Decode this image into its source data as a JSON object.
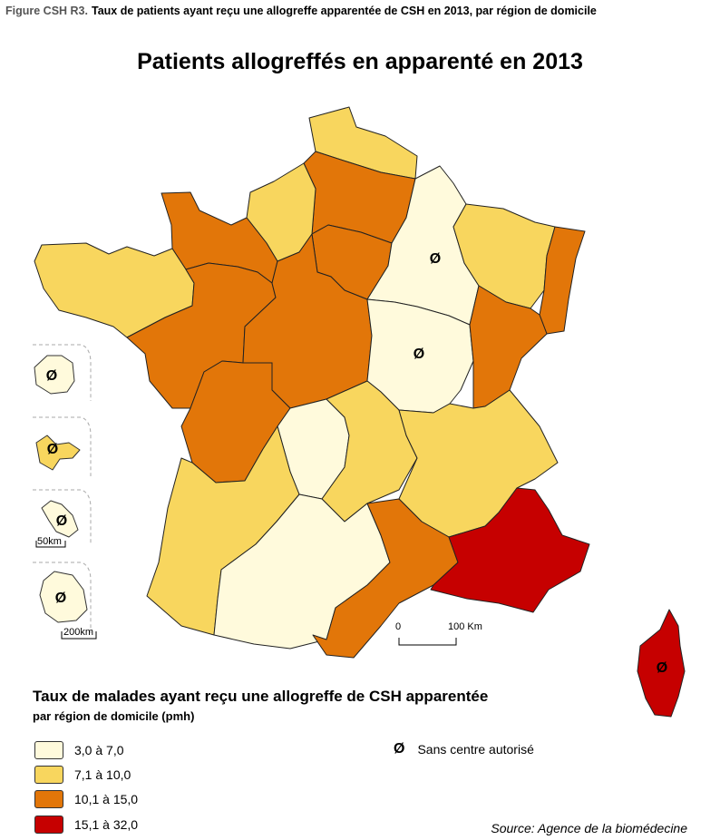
{
  "figure": {
    "label": "Figure CSH R3.",
    "caption": "Taux de patients ayant reçu une allogreffe apparentée de CSH en 2013, par région de domicile"
  },
  "map_title": "Patients allogreffés en apparenté en 2013",
  "classes": [
    {
      "id": "c1",
      "label": "3,0 à 7,0",
      "color": "#fffadc"
    },
    {
      "id": "c2",
      "label": "7,1 à 10,0",
      "color": "#f8d65e"
    },
    {
      "id": "c3",
      "label": "10,1 à 15,0",
      "color": "#e27609"
    },
    {
      "id": "c4",
      "label": "15,1 à 32,0",
      "color": "#c60000"
    }
  ],
  "regions": [
    {
      "id": "nord-pas-de-calais",
      "class": "c2"
    },
    {
      "id": "picardie",
      "class": "c3"
    },
    {
      "id": "haute-normandie",
      "class": "c2"
    },
    {
      "id": "basse-normandie",
      "class": "c3"
    },
    {
      "id": "bretagne",
      "class": "c2"
    },
    {
      "id": "ile-de-france",
      "class": "c3"
    },
    {
      "id": "champagne-ardenne",
      "class": "c1",
      "no_center": true
    },
    {
      "id": "lorraine",
      "class": "c2"
    },
    {
      "id": "alsace",
      "class": "c3"
    },
    {
      "id": "pays-de-la-loire",
      "class": "c3"
    },
    {
      "id": "centre",
      "class": "c3"
    },
    {
      "id": "bourgogne",
      "class": "c1",
      "no_center": true
    },
    {
      "id": "franche-comte",
      "class": "c3"
    },
    {
      "id": "poitou-charentes",
      "class": "c3"
    },
    {
      "id": "limousin",
      "class": "c1"
    },
    {
      "id": "auvergne",
      "class": "c2"
    },
    {
      "id": "rhone-alpes",
      "class": "c2"
    },
    {
      "id": "aquitaine",
      "class": "c2"
    },
    {
      "id": "midi-pyrenees",
      "class": "c1"
    },
    {
      "id": "languedoc-roussillon",
      "class": "c3"
    },
    {
      "id": "paca",
      "class": "c4"
    },
    {
      "id": "corse",
      "class": "c4",
      "no_center": true
    },
    {
      "id": "guadeloupe",
      "class": "c1",
      "no_center": true
    },
    {
      "id": "martinique",
      "class": "c2",
      "no_center": true
    },
    {
      "id": "guyane",
      "class": "c1",
      "no_center": true
    },
    {
      "id": "reunion",
      "class": "c1",
      "no_center": true
    }
  ],
  "no_center_symbol": "Ø",
  "scales": {
    "main_0": "0",
    "main_100": "100 Km",
    "inset_small": "50km",
    "inset_large": "200km"
  },
  "legend": {
    "title": "Taux de malades ayant reçu une allogreffe de CSH apparentée",
    "subtitle": "par région de domicile (pmh)",
    "no_center_label": "Sans centre autorisé"
  },
  "source": "Source: Agence de la biomédecine"
}
